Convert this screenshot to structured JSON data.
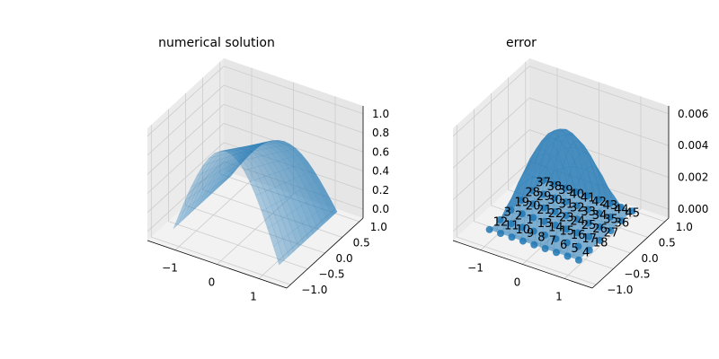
{
  "figure": {
    "background": "#ffffff",
    "pane_color": "#f2f2f2",
    "grid_color": "#cccccc",
    "surface_color": "#1f77b4",
    "point_color": "#1f77b4"
  },
  "chart_data": [
    {
      "type": "surface",
      "title": "numerical solution",
      "xlim": [
        -1.5,
        1.5
      ],
      "ylim": [
        -1.0,
        1.0
      ],
      "zlim": [
        0.0,
        1.0
      ],
      "x_ticks": [
        "−1",
        "0",
        "1"
      ],
      "y_ticks": [
        "−1.0",
        "−0.5",
        "0.0",
        "0.5",
        "1.0"
      ],
      "z_ticks": [
        "0.0",
        "0.2",
        "0.4",
        "0.6",
        "0.8",
        "1.0"
      ],
      "surface": "z ≈ 1 − x²/... (sinusoidal hump, max 1.0 at x=0, y=−1, falling to 0 at x=±1.5)"
    },
    {
      "type": "surface+scatter",
      "title": "error",
      "xlim": [
        -1.5,
        1.5
      ],
      "ylim": [
        -1.0,
        1.0
      ],
      "zlim": [
        0.0,
        0.0065
      ],
      "x_ticks": [
        "−1",
        "0",
        "1"
      ],
      "y_ticks": [
        "−1.0",
        "−0.5",
        "0.0",
        "0.5",
        "1.0"
      ],
      "z_ticks": [
        "0.000",
        "0.002",
        "0.004",
        "0.006"
      ],
      "peak_error": 0.0065,
      "point_labels": [
        "12",
        "11",
        "10",
        "9",
        "8",
        "7",
        "6",
        "5",
        "4",
        "3",
        "2",
        "1",
        "13",
        "14",
        "15",
        "16",
        "17",
        "18",
        "19",
        "20",
        "21",
        "22",
        "23",
        "24",
        "25",
        "26",
        "27",
        "28",
        "29",
        "30",
        "31",
        "32",
        "33",
        "34",
        "35",
        "36",
        "37",
        "38",
        "39",
        "40",
        "41",
        "42",
        "43",
        "44",
        "45"
      ]
    }
  ]
}
